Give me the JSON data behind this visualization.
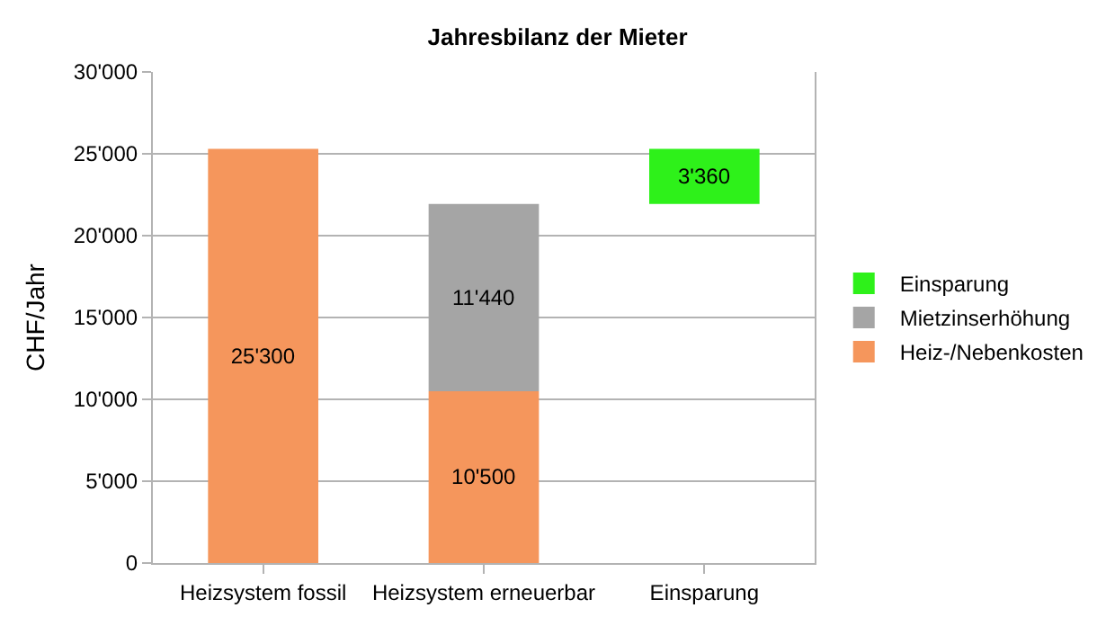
{
  "chart_data": {
    "type": "bar",
    "title": "Jahresbilanz der Mieter",
    "ylabel": "CHF/Jahr",
    "categories": [
      "Heizsystem fossil",
      "Heizsystem erneuerbar",
      "Einsparung"
    ],
    "stacked": true,
    "series": [
      {
        "name": "Heiz-/Nebenkosten",
        "color": "#f5965c",
        "values": [
          25300,
          10500,
          null
        ],
        "value_labels": [
          "25'300",
          "10'500",
          null
        ]
      },
      {
        "name": "Mietzinserhöhung",
        "color": "#a5a5a5",
        "values": [
          null,
          11440,
          null
        ],
        "value_labels": [
          null,
          "11'440",
          null
        ]
      },
      {
        "name": "Einsparung",
        "color": "#2ef11a",
        "values": [
          null,
          null,
          3360
        ],
        "base": [
          null,
          null,
          21940
        ],
        "value_labels": [
          null,
          null,
          "3'360"
        ]
      }
    ],
    "ylim": [
      0,
      30000
    ],
    "yticks": [
      {
        "value": 0,
        "label": "0"
      },
      {
        "value": 5000,
        "label": "5'000"
      },
      {
        "value": 10000,
        "label": "10'000"
      },
      {
        "value": 15000,
        "label": "15'000"
      },
      {
        "value": 20000,
        "label": "20'000"
      },
      {
        "value": 25000,
        "label": "25'000"
      },
      {
        "value": 30000,
        "label": "30'000"
      }
    ],
    "grid": "y",
    "legend": "right"
  }
}
